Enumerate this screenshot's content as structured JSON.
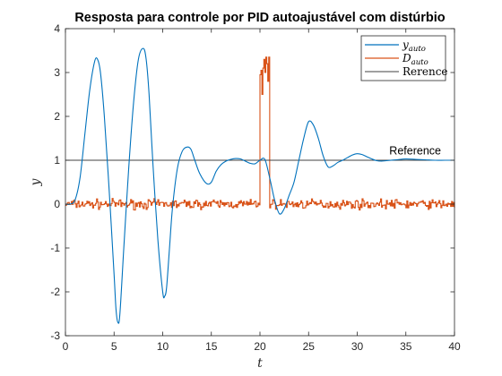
{
  "chart_data": {
    "type": "line",
    "title": "Resposta para controle por PID autoajustável com distúrbio",
    "xlabel": "t",
    "ylabel": "y",
    "xlim": [
      0,
      40
    ],
    "ylim": [
      -3,
      4
    ],
    "xticks": [
      0,
      5,
      10,
      15,
      20,
      25,
      30,
      35,
      40
    ],
    "yticks": [
      -3,
      -2,
      -1,
      0,
      1,
      2,
      3,
      4
    ],
    "grid": false,
    "legend_position": "top-right",
    "series": [
      {
        "name_main": "y",
        "name_sub": "auto",
        "color": "#0072BD",
        "x": [
          0,
          0.5,
          1,
          1.5,
          2,
          2.5,
          3,
          3.3,
          3.6,
          4,
          4.5,
          5,
          5.2,
          5.4,
          5.6,
          6,
          6.5,
          7,
          7.5,
          8,
          8.3,
          8.6,
          9,
          9.5,
          10,
          10.2,
          10.4,
          10.7,
          11,
          11.5,
          12,
          12.5,
          12.9,
          13.3,
          13.8,
          14.5,
          15,
          15.5,
          16,
          16.5,
          17,
          17.5,
          18,
          18.5,
          19,
          19.5,
          20,
          20.5,
          21,
          21.5,
          22,
          22.5,
          23,
          23.5,
          24,
          24.5,
          25,
          25.5,
          26,
          26.5,
          27,
          27.5,
          28,
          28.5,
          29,
          29.5,
          30,
          30.5,
          31,
          31.5,
          32,
          32.5,
          33,
          34,
          35,
          36,
          37,
          38,
          39,
          40
        ],
        "values": [
          0,
          0,
          0.1,
          0.6,
          1.6,
          2.6,
          3.25,
          3.3,
          3.0,
          2.0,
          0.3,
          -1.6,
          -2.4,
          -2.7,
          -2.5,
          -1.0,
          0.8,
          2.3,
          3.3,
          3.55,
          3.3,
          2.5,
          0.9,
          -0.8,
          -2.0,
          -2.1,
          -1.9,
          -1.0,
          -0.1,
          0.8,
          1.2,
          1.3,
          1.25,
          1.0,
          0.7,
          0.47,
          0.5,
          0.75,
          0.9,
          0.98,
          1.02,
          1.04,
          1.03,
          0.98,
          0.93,
          0.92,
          1.0,
          1.02,
          0.6,
          0.1,
          -0.22,
          -0.1,
          0.2,
          0.5,
          1.0,
          1.5,
          1.88,
          1.8,
          1.5,
          1.1,
          0.85,
          0.87,
          0.95,
          1.0,
          1.06,
          1.12,
          1.15,
          1.13,
          1.08,
          1.03,
          0.99,
          0.98,
          0.99,
          1.01,
          1.03,
          1.02,
          1.01,
          1.0,
          1.0,
          1.0
        ]
      },
      {
        "name_main": "D",
        "name_sub": "auto",
        "color": "#D95319",
        "x_start": 0,
        "dt": 0.1,
        "pulse": {
          "start": 20,
          "end": 21,
          "values": [
            2.95,
            3.05,
            2.5,
            3.1,
            3.3,
            3.0,
            3.35,
            3.2,
            2.8,
            3.35
          ]
        },
        "noise_seed": 7,
        "noise_amplitude": 0.09
      },
      {
        "name": "Rerence",
        "color": "#404040",
        "x": [
          0,
          40
        ],
        "values": [
          1,
          1
        ]
      }
    ],
    "annotations": [
      {
        "text": "Reference",
        "x": 33.3,
        "y": 1.07
      }
    ]
  }
}
